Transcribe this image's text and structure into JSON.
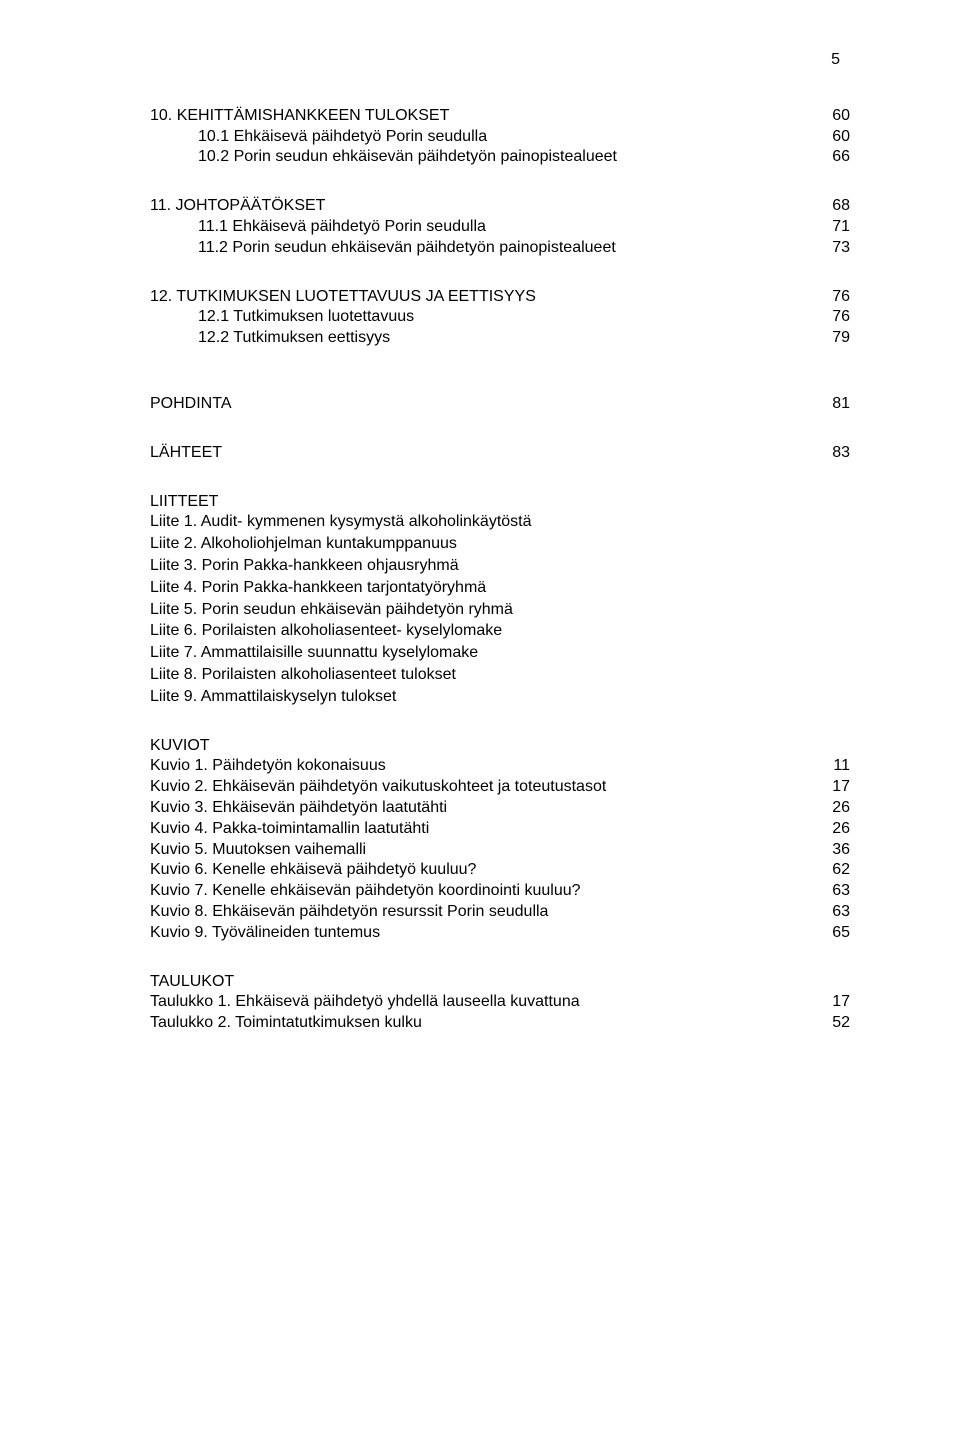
{
  "page": {
    "number": "5"
  },
  "toc": {
    "sections": [
      {
        "heading": {
          "label": "10. KEHITTÄMISHANKKEEN TULOKSET",
          "page": "60"
        },
        "items": [
          {
            "label": "10.1 Ehkäisevä päihdetyö Porin seudulla",
            "page": "60"
          },
          {
            "label": "10.2 Porin seudun ehkäisevän päihdetyön painopistealueet",
            "page": "66"
          }
        ]
      },
      {
        "heading": {
          "label": "11. JOHTOPÄÄTÖKSET",
          "page": "68"
        },
        "items": [
          {
            "label": "11.1 Ehkäisevä päihdetyö Porin seudulla",
            "page": "71"
          },
          {
            "label": "11.2 Porin seudun ehkäisevän päihdetyön painopistealueet",
            "page": "73"
          }
        ]
      },
      {
        "heading": {
          "label": "12. TUTKIMUKSEN LUOTETTAVUUS JA EETTISYYS",
          "page": "76"
        },
        "items": [
          {
            "label": "12.1 Tutkimuksen luotettavuus",
            "page": "76"
          },
          {
            "label": "12.2 Tutkimuksen eettisyys",
            "page": "79"
          }
        ]
      }
    ],
    "pohdinta": {
      "label": "POHDINTA",
      "page": "81"
    },
    "lahteet": {
      "label": "LÄHTEET",
      "page": "83"
    },
    "liitteet": {
      "title": "LIITTEET",
      "items": [
        "Liite 1. Audit- kymmenen kysymystä alkoholinkäytöstä",
        "Liite 2. Alkoholiohjelman kuntakumppanuus",
        "Liite 3. Porin Pakka-hankkeen ohjausryhmä",
        "Liite 4. Porin Pakka-hankkeen tarjontatyöryhmä",
        "Liite 5. Porin seudun ehkäisevän päihdetyön ryhmä",
        "Liite 6. Porilaisten alkoholiasenteet- kyselylomake",
        "Liite 7. Ammattilaisille suunnattu kyselylomake",
        "Liite 8. Porilaisten alkoholiasenteet tulokset",
        "Liite 9. Ammattilaiskyselyn tulokset"
      ]
    },
    "kuviot": {
      "title": "KUVIOT",
      "items": [
        {
          "label": "Kuvio 1. Päihdetyön kokonaisuus",
          "page": "11"
        },
        {
          "label": "Kuvio 2. Ehkäisevän päihdetyön vaikutuskohteet ja toteutustasot",
          "page": "17"
        },
        {
          "label": "Kuvio 3. Ehkäisevän päihdetyön laatutähti",
          "page": "26"
        },
        {
          "label": "Kuvio 4. Pakka-toimintamallin laatutähti",
          "page": "26"
        },
        {
          "label": "Kuvio 5. Muutoksen vaihemalli",
          "page": "36"
        },
        {
          "label": "Kuvio 6. Kenelle ehkäisevä päihdetyö kuuluu?",
          "page": "62"
        },
        {
          "label": "Kuvio 7. Kenelle ehkäisevän päihdetyön koordinointi kuuluu?",
          "page": "63"
        },
        {
          "label": "Kuvio 8. Ehkäisevän päihdetyön resurssit Porin seudulla",
          "page": "63"
        },
        {
          "label": "Kuvio 9. Työvälineiden tuntemus",
          "page": "65"
        }
      ]
    },
    "taulukot": {
      "title": "TAULUKOT",
      "items": [
        {
          "label": "Taulukko 1. Ehkäisevä päihdetyö yhdellä lauseella kuvattuna",
          "page": "17"
        },
        {
          "label": "Taulukko 2. Toimintatutkimuksen kulku",
          "page": "52"
        }
      ]
    }
  }
}
